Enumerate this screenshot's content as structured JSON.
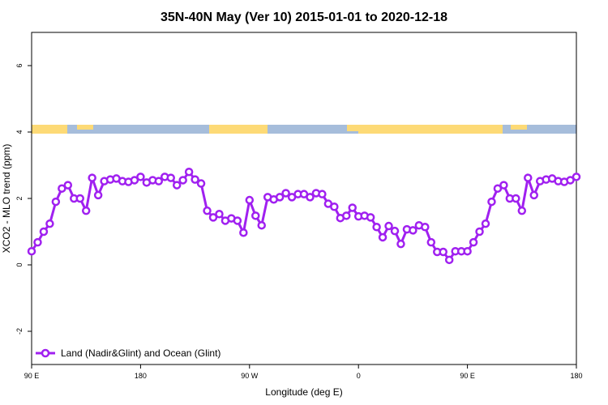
{
  "chart_data": {
    "type": "line",
    "title": "35N-40N May (Ver 10)   2015-01-01 to 2020-12-18",
    "xlabel": "Longitude (deg E)",
    "ylabel": "XCO2 - MLO trend (ppm)",
    "x": [
      90,
      95,
      100,
      105,
      110,
      115,
      120,
      125,
      130,
      135,
      140,
      145,
      150,
      155,
      160,
      165,
      170,
      175,
      180,
      185,
      190,
      195,
      200,
      205,
      210,
      215,
      220,
      225,
      230,
      235,
      240,
      245,
      250,
      255,
      260,
      265,
      270,
      275,
      280,
      285,
      290,
      295,
      300,
      305,
      310,
      315,
      320,
      325,
      330,
      335,
      340,
      345,
      350,
      355,
      360,
      365,
      370,
      375,
      380,
      385,
      390,
      395,
      400,
      405,
      410,
      415,
      420,
      425,
      430,
      435,
      440,
      445,
      450,
      455,
      460,
      465,
      470,
      475,
      480,
      485,
      490,
      495,
      500,
      505,
      510,
      515,
      520,
      525,
      530,
      535,
      540
    ],
    "series": [
      {
        "name": "Land (Nadir&Glint) and Ocean (Glint)",
        "color": "#a020f0",
        "values": [
          0.41,
          0.68,
          1.0,
          1.24,
          1.9,
          2.3,
          2.4,
          2.0,
          2.0,
          1.63,
          2.62,
          2.1,
          2.52,
          2.57,
          2.6,
          2.52,
          2.5,
          2.55,
          2.65,
          2.48,
          2.55,
          2.52,
          2.65,
          2.62,
          2.4,
          2.55,
          2.8,
          2.57,
          2.45,
          1.63,
          1.43,
          1.53,
          1.33,
          1.4,
          1.33,
          0.97,
          1.95,
          1.48,
          1.19,
          2.04,
          1.97,
          2.04,
          2.16,
          2.04,
          2.13,
          2.13,
          2.04,
          2.16,
          2.13,
          1.84,
          1.75,
          1.41,
          1.48,
          1.72,
          1.46,
          1.48,
          1.43,
          1.14,
          0.83,
          1.17,
          1.02,
          0.63,
          1.07,
          1.04,
          1.19,
          1.14,
          0.68,
          0.39,
          0.39,
          0.15,
          0.41,
          0.41,
          0.41,
          0.68,
          1.0,
          1.24,
          1.9,
          2.3,
          2.4,
          2.0,
          2.0,
          1.63,
          2.62,
          2.1,
          2.52,
          2.57,
          2.6,
          2.52,
          2.5,
          2.55,
          2.65
        ]
      }
    ],
    "xlim": [
      90,
      540
    ],
    "xticks": [
      {
        "value": 90,
        "label": "90 E"
      },
      {
        "value": 180,
        "label": "180"
      },
      {
        "value": 270,
        "label": "90 W"
      },
      {
        "value": 360,
        "label": "0"
      },
      {
        "value": 450,
        "label": "90 E"
      },
      {
        "value": 540,
        "label": "180"
      }
    ],
    "ylim": [
      -3,
      7
    ],
    "yticks": [
      -2,
      0,
      2,
      4,
      6
    ],
    "legend": "bottom-left"
  }
}
